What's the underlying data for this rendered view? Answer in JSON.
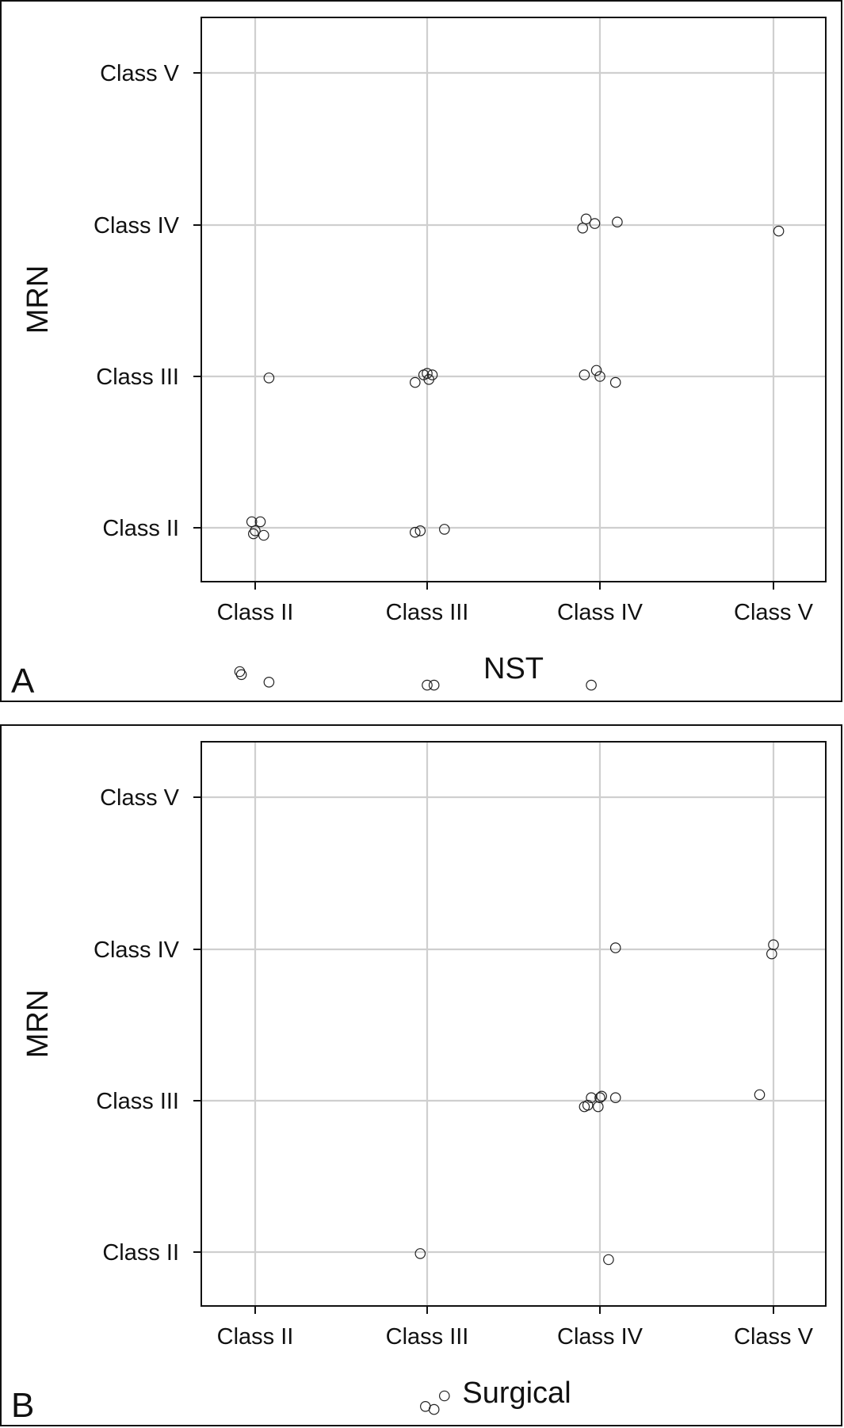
{
  "chart_data": [
    {
      "type": "scatter",
      "panel_label": "A",
      "xlabel": "NST",
      "ylabel": "MRN",
      "categories": [
        "Class II",
        "Class III",
        "Class IV",
        "Class V"
      ],
      "grid": true,
      "points": [
        {
          "x": 3.9,
          "y": 3.98
        },
        {
          "x": 3.92,
          "y": 4.04
        },
        {
          "x": 3.97,
          "y": 4.01
        },
        {
          "x": 4.1,
          "y": 4.02
        },
        {
          "x": 5.03,
          "y": 3.96
        },
        {
          "x": 2.08,
          "y": 2.99
        },
        {
          "x": 2.93,
          "y": 2.96
        },
        {
          "x": 2.98,
          "y": 3.01
        },
        {
          "x": 3.0,
          "y": 3.02
        },
        {
          "x": 3.01,
          "y": 2.98
        },
        {
          "x": 3.03,
          "y": 3.01
        },
        {
          "x": 3.91,
          "y": 3.01
        },
        {
          "x": 3.98,
          "y": 3.04
        },
        {
          "x": 4.0,
          "y": 3.0
        },
        {
          "x": 4.09,
          "y": 2.96
        },
        {
          "x": 1.98,
          "y": 2.04
        },
        {
          "x": 2.03,
          "y": 2.04
        },
        {
          "x": 2.0,
          "y": 1.98
        },
        {
          "x": 1.99,
          "y": 1.96
        },
        {
          "x": 2.05,
          "y": 1.95
        },
        {
          "x": 2.93,
          "y": 1.97
        },
        {
          "x": 2.96,
          "y": 1.98
        },
        {
          "x": 3.1,
          "y": 1.99
        },
        {
          "x": 1.91,
          "y": 1.05
        },
        {
          "x": 1.92,
          "y": 1.03
        },
        {
          "x": 2.08,
          "y": 0.98
        },
        {
          "x": 3.0,
          "y": 0.96
        },
        {
          "x": 3.04,
          "y": 0.96
        },
        {
          "x": 3.95,
          "y": 0.96
        }
      ]
    },
    {
      "type": "scatter",
      "panel_label": "B",
      "xlabel": "Surgical",
      "ylabel": "MRN",
      "categories": [
        "Class II",
        "Class III",
        "Class IV",
        "Class V"
      ],
      "grid": true,
      "points": [
        {
          "x": 4.09,
          "y": 4.01
        },
        {
          "x": 5.0,
          "y": 4.03
        },
        {
          "x": 4.99,
          "y": 3.97
        },
        {
          "x": 3.91,
          "y": 2.96
        },
        {
          "x": 3.93,
          "y": 2.97
        },
        {
          "x": 3.95,
          "y": 3.02
        },
        {
          "x": 4.0,
          "y": 3.02
        },
        {
          "x": 4.01,
          "y": 3.03
        },
        {
          "x": 3.99,
          "y": 2.96
        },
        {
          "x": 4.09,
          "y": 3.02
        },
        {
          "x": 4.92,
          "y": 3.04
        },
        {
          "x": 2.96,
          "y": 1.99
        },
        {
          "x": 4.05,
          "y": 1.95
        },
        {
          "x": 3.1,
          "y": 1.05
        },
        {
          "x": 2.99,
          "y": 0.98
        },
        {
          "x": 3.04,
          "y": 0.96
        }
      ]
    }
  ]
}
